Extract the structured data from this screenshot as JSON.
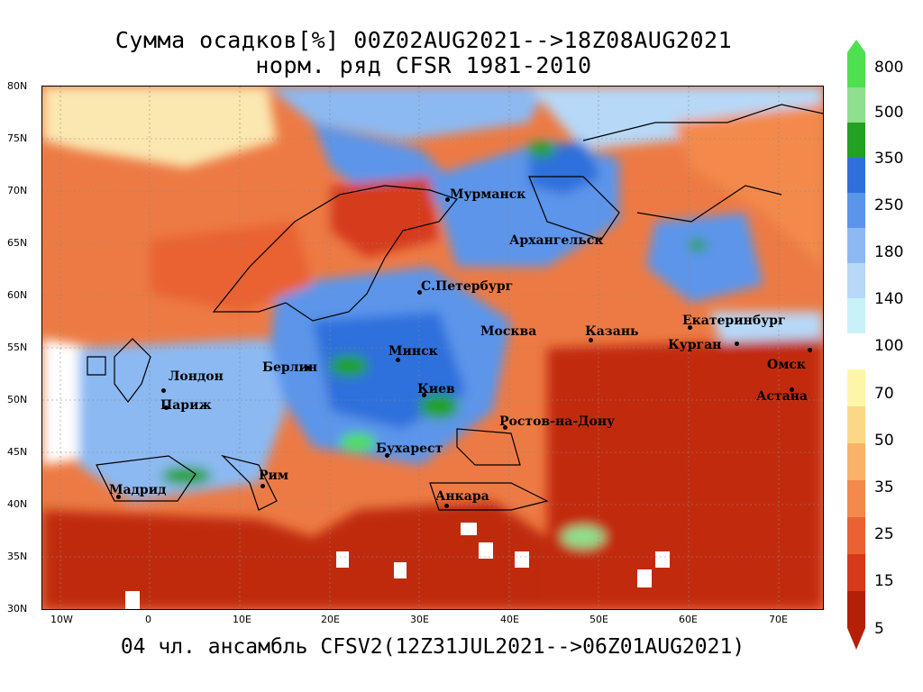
{
  "title_line1": "Сумма осадков[%] 00Z02AUG2021-->18Z08AUG2021",
  "title_line2": "норм. ряд CFSR 1981-2010",
  "bottom_caption": "04 чл. ансамбль CFSV2(12Z31JUL2021-->06Z01AUG2021)",
  "lat_labels": [
    "80N",
    "75N",
    "70N",
    "65N",
    "60N",
    "55N",
    "50N",
    "45N",
    "40N",
    "35N",
    "30N"
  ],
  "lon_labels": [
    "10W",
    "0",
    "10E",
    "20E",
    "30E",
    "40E",
    "50E",
    "60E",
    "70E"
  ],
  "colorbar": {
    "upper_labels": [
      "800",
      "500",
      "350",
      "250",
      "180",
      "140",
      "100"
    ],
    "lower_labels": [
      "70",
      "50",
      "35",
      "25",
      "15",
      "5"
    ],
    "upper_colors": [
      "#4fe04f",
      "#8ee08e",
      "#23a123",
      "#2f6fdc",
      "#5b95ea",
      "#8cb9f2",
      "#b7d8f7",
      "#c8f2f7"
    ],
    "lower_colors": [
      "#fdf6a8",
      "#fbd886",
      "#f9b268",
      "#f38a4c",
      "#ea6233",
      "#d63a1a",
      "#b51f08"
    ]
  },
  "cities": [
    "Мурманск",
    "Архангельск",
    "С.Петербург",
    "Москва",
    "Казань",
    "Екатеринбург",
    "Курган",
    "Омск",
    "Астана",
    "Минск",
    "Берлин",
    "Лондон",
    "Париж",
    "Киев",
    "Ростов-на-Дону",
    "Бухарест",
    "Рим",
    "Мадрид",
    "Анкара"
  ]
}
